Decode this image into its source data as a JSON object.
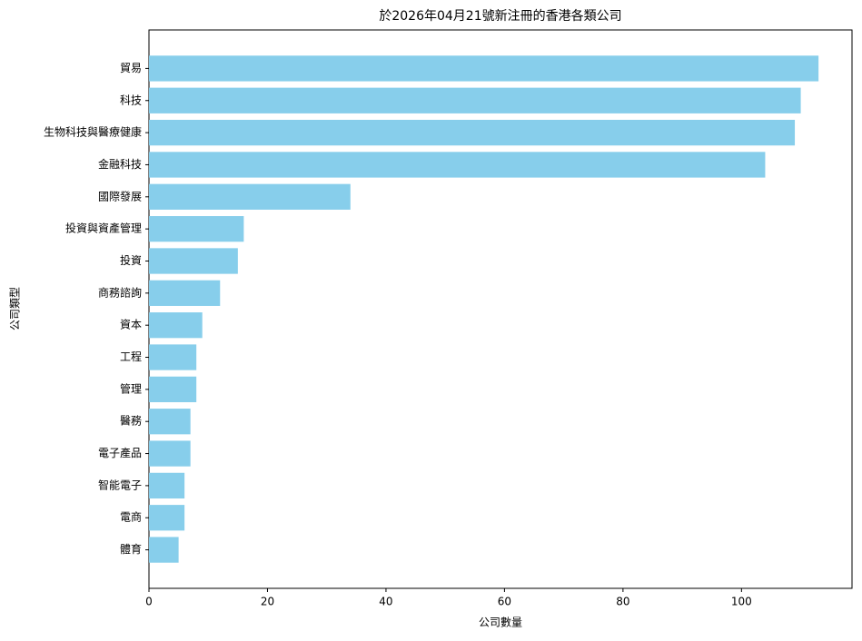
{
  "chart_data": {
    "type": "barh",
    "title": "於2026年04月21號新注冊的香港各類公司",
    "x_label": "公司數量",
    "y_label": "公司類型",
    "categories": [
      "貿易",
      "科技",
      "生物科技與醫療健康",
      "金融科技",
      "國際發展",
      "投資與資產管理",
      "投資",
      "商務諮詢",
      "資本",
      "工程",
      "管理",
      "醫務",
      "電子產品",
      "智能電子",
      "電商",
      "體育"
    ],
    "values": [
      113,
      110,
      109,
      104,
      34,
      16,
      15,
      12,
      9,
      8,
      8,
      7,
      7,
      6,
      6,
      5
    ],
    "color": "#87ceeb",
    "xlim": [
      0,
      118.65
    ],
    "xticks": [
      0,
      20,
      40,
      60,
      80,
      100
    ]
  }
}
